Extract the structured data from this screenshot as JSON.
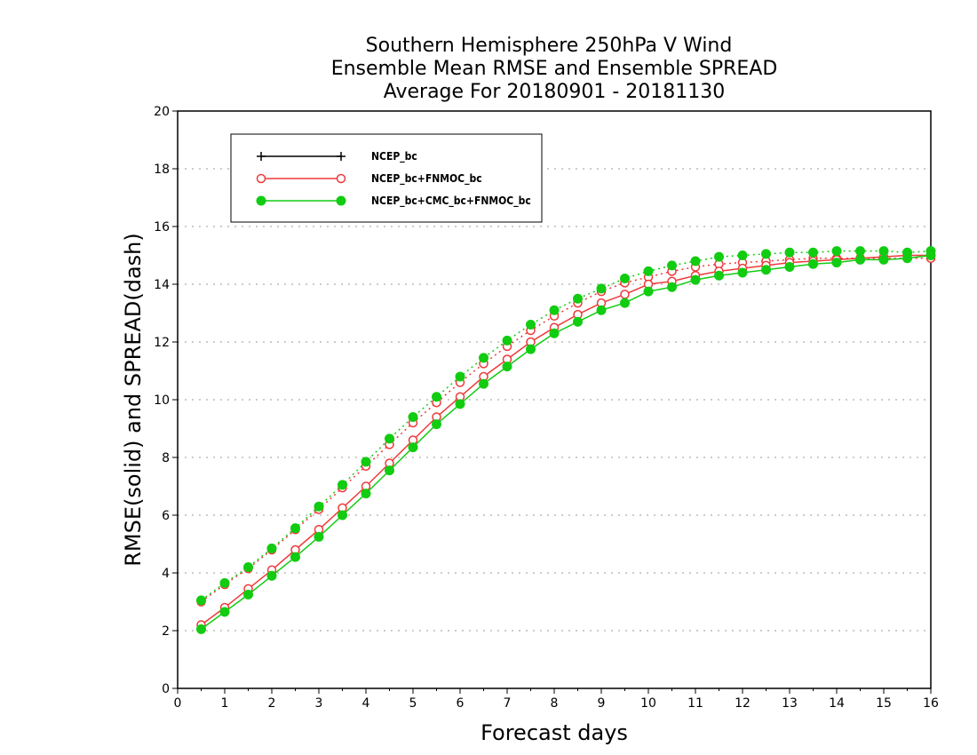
{
  "chart_data": {
    "type": "line",
    "title": [
      "Southern Hemisphere 250hPa V Wind",
      "Ensemble Mean RMSE and Ensemble SPREAD",
      "Average For 20180901 - 20181130"
    ],
    "xlabel": "Forecast days",
    "ylabel": "RMSE(solid) and SPREAD(dash)",
    "xlim": [
      0,
      16
    ],
    "ylim": [
      0,
      20
    ],
    "xticks": [
      "0",
      "1",
      "2",
      "3",
      "4",
      "5",
      "6",
      "7",
      "8",
      "9",
      "10",
      "11",
      "12",
      "13",
      "14",
      "15",
      "16"
    ],
    "yticks": [
      "0",
      "2",
      "4",
      "6",
      "8",
      "10",
      "12",
      "14",
      "16",
      "18",
      "20"
    ],
    "grid": true,
    "legend_position": "top-left",
    "x": [
      0.5,
      1,
      1.5,
      2,
      2.5,
      3,
      3.5,
      4,
      4.5,
      5,
      5.5,
      6,
      6.5,
      7,
      7.5,
      8,
      8.5,
      9,
      9.5,
      10,
      10.5,
      11,
      11.5,
      12,
      12.5,
      13,
      13.5,
      14,
      14.5,
      15,
      15.5,
      16
    ],
    "series": [
      {
        "name": "NCEP_bc",
        "color": "#000000",
        "marker": "plus",
        "rmse": null,
        "spread": null
      },
      {
        "name": "NCEP_bc+FNMOC_bc",
        "color": "#ee3a3a",
        "marker": "open-circle",
        "rmse": [
          2.2,
          2.8,
          3.45,
          4.1,
          4.8,
          5.5,
          6.25,
          7.0,
          7.8,
          8.6,
          9.4,
          10.1,
          10.8,
          11.4,
          12.0,
          12.5,
          12.95,
          13.35,
          13.65,
          14.0,
          14.1,
          14.3,
          14.45,
          14.55,
          14.65,
          14.75,
          14.8,
          14.85,
          14.9,
          14.95,
          15.0,
          15.0
        ],
        "spread": [
          3.0,
          3.6,
          4.15,
          4.8,
          5.5,
          6.2,
          6.95,
          7.7,
          8.45,
          9.2,
          9.9,
          10.6,
          11.25,
          11.85,
          12.4,
          12.9,
          13.35,
          13.75,
          14.05,
          14.25,
          14.45,
          14.6,
          14.7,
          14.75,
          14.8,
          14.85,
          14.9,
          14.9,
          14.9,
          14.9,
          14.9,
          14.9
        ]
      },
      {
        "name": "NCEP_bc+CMC_bc+FNMOC_bc",
        "color": "#11cc11",
        "marker": "filled-circle",
        "rmse": [
          2.05,
          2.65,
          3.25,
          3.9,
          4.55,
          5.25,
          6.0,
          6.75,
          7.55,
          8.35,
          9.15,
          9.85,
          10.55,
          11.15,
          11.75,
          12.3,
          12.7,
          13.1,
          13.35,
          13.75,
          13.9,
          14.15,
          14.3,
          14.4,
          14.5,
          14.6,
          14.7,
          14.75,
          14.85,
          14.85,
          14.9,
          15.0
        ],
        "spread": [
          3.05,
          3.65,
          4.2,
          4.85,
          5.55,
          6.3,
          7.05,
          7.85,
          8.65,
          9.4,
          10.1,
          10.8,
          11.45,
          12.05,
          12.6,
          13.1,
          13.5,
          13.85,
          14.2,
          14.45,
          14.65,
          14.8,
          14.95,
          15.0,
          15.05,
          15.1,
          15.1,
          15.15,
          15.15,
          15.15,
          15.1,
          15.15
        ]
      }
    ]
  }
}
